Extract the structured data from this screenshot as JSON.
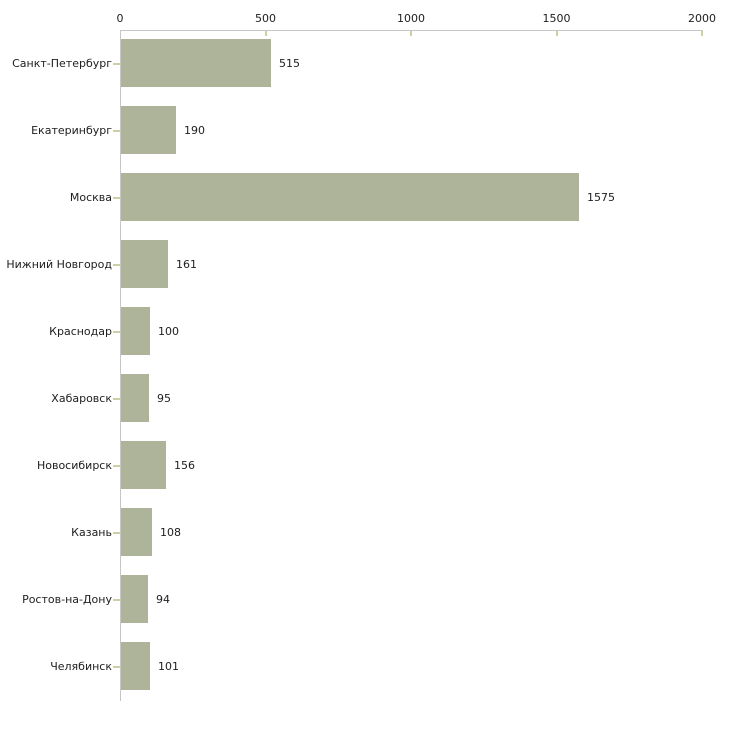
{
  "chart_data": {
    "type": "bar",
    "orientation": "horizontal",
    "title": "",
    "xlabel": "",
    "ylabel": "",
    "categories": [
      "Санкт-Петербург",
      "Екатеринбург",
      "Москва",
      "Нижний Новгород",
      "Краснодар",
      "Хабаровск",
      "Новосибирск",
      "Казань",
      "Ростов-на-Дону",
      "Челябинск"
    ],
    "values": [
      515,
      190,
      1575,
      161,
      100,
      95,
      156,
      108,
      94,
      101
    ],
    "value_labels": [
      "515",
      "190",
      "1575",
      "161",
      "100",
      "95",
      "156",
      "108",
      "94",
      "101"
    ],
    "xlim": [
      0,
      2000
    ],
    "x_ticks": [
      0,
      500,
      1000,
      1500,
      2000
    ],
    "x_tick_labels": [
      "0",
      "500",
      "1000",
      "1500",
      "2000"
    ],
    "axis_position": "top",
    "grid": false,
    "legend": "none",
    "bar_color": "#aeb49a",
    "tick_mark_color": "#cdd0a0",
    "axis_line_color": "#c6c6c6",
    "text_color": "#202020",
    "background_color": "#ffffff"
  }
}
